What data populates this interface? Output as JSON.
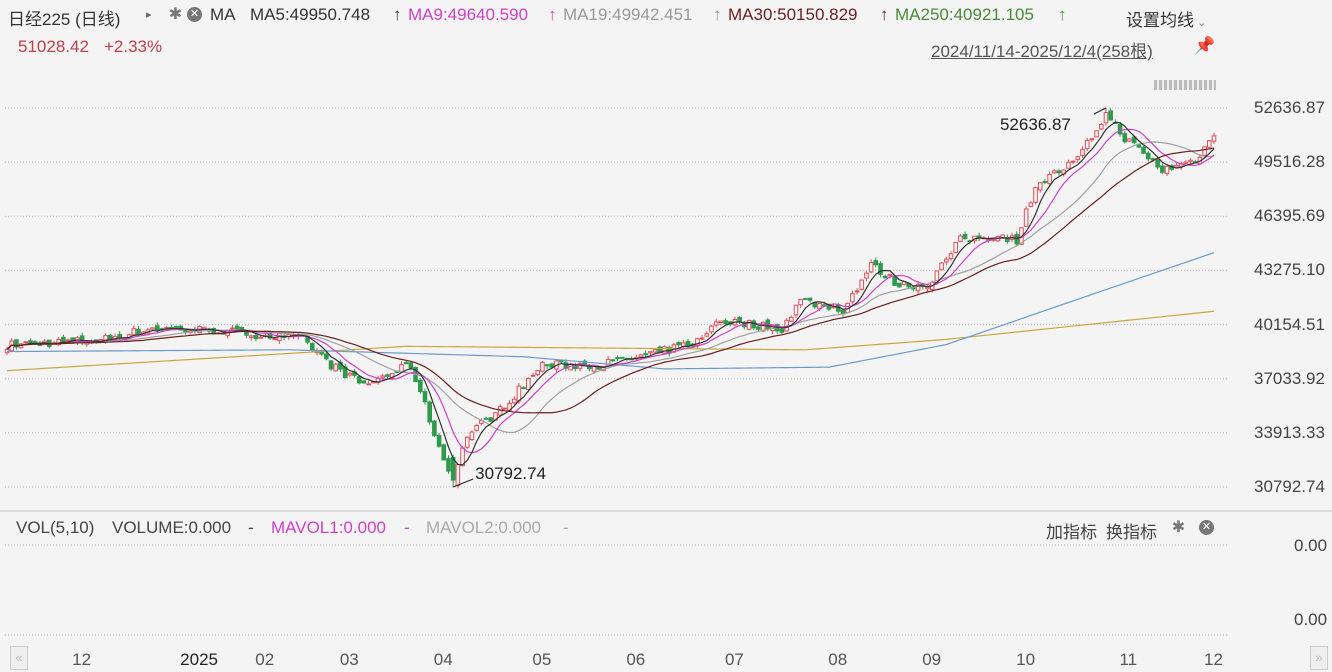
{
  "header": {
    "title": "日经225 (日线)",
    "ma_label": "MA",
    "ma5": "MA5:49950.748",
    "ma9": "MA9:49640.590",
    "ma19": "MA19:49942.451",
    "ma30": "MA30:50150.829",
    "ma250": "MA250:40921.105",
    "arrow": "↑",
    "settings": "设置均线",
    "price": "51028.42",
    "change": "+2.33%",
    "range": "2024/11/14-2025/12/4(258根)"
  },
  "volume": {
    "title": "VOL(5,10)",
    "volume": "VOLUME:0.000",
    "mavol1": "MAVOL1:0.000",
    "mavol2": "MAVOL2:0.000",
    "dash": "-",
    "add": "加指标",
    "switch": "换指标",
    "y_labels": [
      "0.00",
      "0.00"
    ]
  },
  "colors": {
    "up": "#e0505a",
    "down": "#2f9a4c",
    "ma5": "#333333",
    "ma9": "#d040c8",
    "ma19": "#a0a0a0",
    "ma30": "#6b1f1f",
    "ma250": "#c8a840",
    "ma_extra": "#6a9ad0"
  },
  "chart_data": {
    "type": "candlestick",
    "bars": 258,
    "y_ticks": [
      "52636.87",
      "49516.28",
      "46395.69",
      "43275.10",
      "40154.51",
      "37033.92",
      "33913.33",
      "30792.74"
    ],
    "ylim": [
      30792.74,
      52636.87
    ],
    "x_ticks": [
      {
        "label": "12",
        "bar": 16
      },
      {
        "label": "2025",
        "bar": 39
      },
      {
        "label": "02",
        "bar": 55
      },
      {
        "label": "03",
        "bar": 73
      },
      {
        "label": "04",
        "bar": 93
      },
      {
        "label": "05",
        "bar": 114
      },
      {
        "label": "06",
        "bar": 134
      },
      {
        "label": "07",
        "bar": 155
      },
      {
        "label": "08",
        "bar": 177
      },
      {
        "label": "09",
        "bar": 197
      },
      {
        "label": "10",
        "bar": 217
      },
      {
        "label": "11",
        "bar": 239
      },
      {
        "label": "12",
        "bar": 257
      }
    ],
    "annotations": [
      {
        "text": "52636.87",
        "bar": 234,
        "value": 52636.87
      },
      {
        "text": "30792.74",
        "bar": 95,
        "value": 30792.74
      }
    ],
    "close_keypoints": [
      [
        0,
        38980
      ],
      [
        20,
        39270
      ],
      [
        31,
        39950
      ],
      [
        46,
        39800
      ],
      [
        63,
        39300
      ],
      [
        69,
        37830
      ],
      [
        76,
        36670
      ],
      [
        86,
        37830
      ],
      [
        93,
        32350
      ],
      [
        95,
        31200
      ],
      [
        98,
        33790
      ],
      [
        105,
        35230
      ],
      [
        114,
        37830
      ],
      [
        126,
        37830
      ],
      [
        137,
        38400
      ],
      [
        148,
        39270
      ],
      [
        151,
        40420
      ],
      [
        165,
        39950
      ],
      [
        169,
        41570
      ],
      [
        178,
        40990
      ],
      [
        184,
        43590
      ],
      [
        190,
        42440
      ],
      [
        196,
        42440
      ],
      [
        203,
        45030
      ],
      [
        211,
        45320
      ],
      [
        215,
        45030
      ],
      [
        219,
        48200
      ],
      [
        228,
        49640
      ],
      [
        234,
        52300
      ],
      [
        238,
        50930
      ],
      [
        246,
        49060
      ],
      [
        253,
        49640
      ],
      [
        257,
        51028.42
      ]
    ],
    "ma250_keypoints": [
      [
        0,
        37500
      ],
      [
        85,
        38900
      ],
      [
        170,
        38700
      ],
      [
        200,
        39300
      ],
      [
        257,
        40921.105
      ]
    ],
    "ma_extra_keypoints": [
      [
        0,
        38600
      ],
      [
        60,
        38700
      ],
      [
        110,
        38300
      ],
      [
        140,
        37600
      ],
      [
        175,
        37700
      ],
      [
        200,
        39000
      ],
      [
        230,
        41800
      ],
      [
        257,
        44300
      ]
    ],
    "volume_values": [
      0
    ]
  }
}
